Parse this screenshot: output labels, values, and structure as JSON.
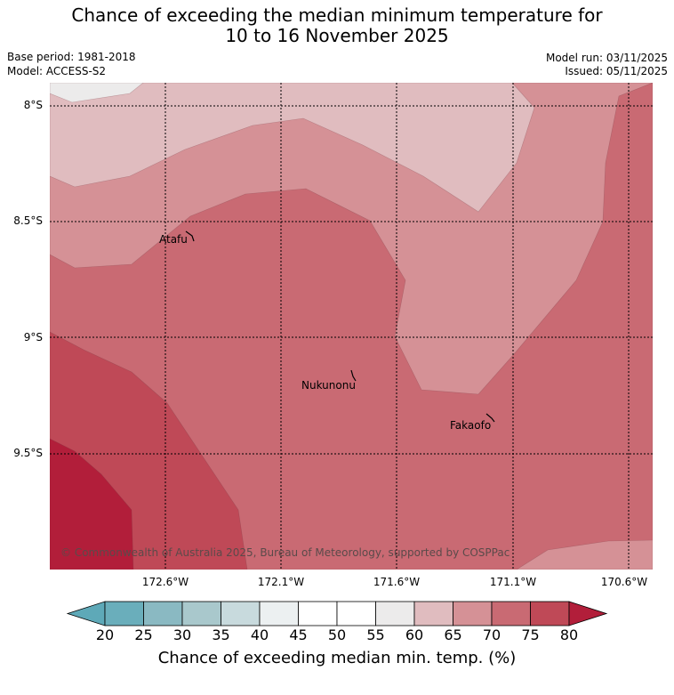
{
  "title": {
    "line1": "Chance of exceeding the median minimum temperature for",
    "line2": "10 to 16 November 2025"
  },
  "meta": {
    "base_period": "Base period: 1981-2018",
    "model": "Model: ACCESS-S2",
    "model_run": "Model run: 03/11/2025",
    "issued": "Issued: 05/11/2025"
  },
  "map": {
    "lat_labels": [
      "8°S",
      "8.5°S",
      "9°S",
      "9.5°S"
    ],
    "lon_labels": [
      "172.6°W",
      "172.1°W",
      "171.6°W",
      "171.1°W",
      "170.6°W"
    ],
    "places": [
      "Atafu",
      "Nukunonu",
      "Fakaofo"
    ],
    "copyright": "© Commonwealth of Australia 2025, Bureau of Meteorology, supported by COSPPac",
    "band_colors": {
      "45-55": "#ecebeb",
      "60-65": "#e0bcbf",
      "65-70": "#d59196",
      "70-75": "#c96a73",
      "75-80": "#bf4957",
      "80+": "#b21e3a"
    }
  },
  "colorbar": {
    "ticks": [
      "20",
      "25",
      "30",
      "35",
      "40",
      "45",
      "50",
      "55",
      "60",
      "65",
      "70",
      "75",
      "80"
    ],
    "colors": [
      "#5ea9b8",
      "#6aaebb",
      "#8ab9c2",
      "#a9c8cc",
      "#c8dadd",
      "#ecf0f1",
      "#ffffff",
      "#ffffff",
      "#ecebeb",
      "#e0bcbf",
      "#d59196",
      "#c96a73",
      "#bf4957",
      "#b21e3a"
    ],
    "label": "Chance of exceeding median min. temp. (%)"
  }
}
